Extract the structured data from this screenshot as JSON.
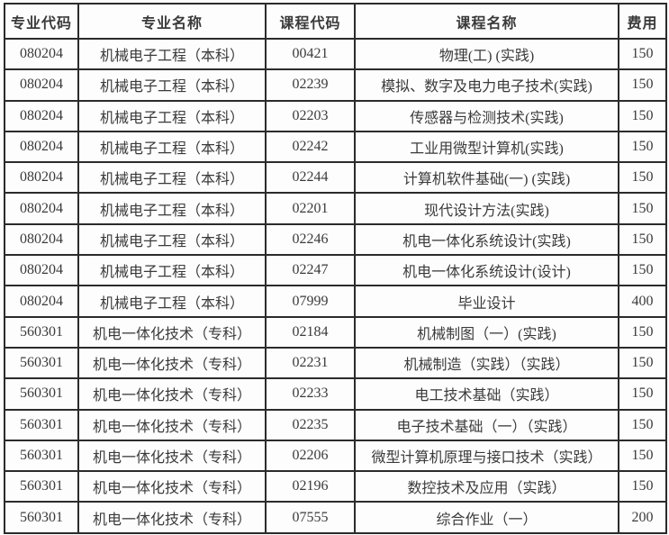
{
  "table": {
    "columns": [
      {
        "key": "major_code",
        "label": "专业代码"
      },
      {
        "key": "major_name",
        "label": "专业名称"
      },
      {
        "key": "course_code",
        "label": "课程代码"
      },
      {
        "key": "course_name",
        "label": "课程名称"
      },
      {
        "key": "fee",
        "label": "费用"
      }
    ],
    "rows": [
      [
        "080204",
        "机械电子工程（本科）",
        "00421",
        "物理(工) (实践)",
        "150"
      ],
      [
        "080204",
        "机械电子工程（本科）",
        "02239",
        "模拟、数字及电力电子技术(实践)",
        "150"
      ],
      [
        "080204",
        "机械电子工程（本科）",
        "02203",
        "传感器与检测技术(实践)",
        "150"
      ],
      [
        "080204",
        "机械电子工程（本科）",
        "02242",
        "工业用微型计算机(实践)",
        "150"
      ],
      [
        "080204",
        "机械电子工程（本科）",
        "02244",
        "计算机软件基础(一) (实践)",
        "150"
      ],
      [
        "080204",
        "机械电子工程（本科）",
        "02201",
        "现代设计方法(实践)",
        "150"
      ],
      [
        "080204",
        "机械电子工程（本科）",
        "02246",
        "机电一体化系统设计(实践)",
        "150"
      ],
      [
        "080204",
        "机械电子工程（本科）",
        "02247",
        "机电一体化系统设计(设计)",
        "150"
      ],
      [
        "080204",
        "机械电子工程（本科）",
        "07999",
        "毕业设计",
        "400"
      ],
      [
        "560301",
        "机电一体化技术（专科）",
        "02184",
        "机械制图（一）(实践)",
        "150"
      ],
      [
        "560301",
        "机电一体化技术（专科）",
        "02231",
        "机械制造（实践）（实践）",
        "150"
      ],
      [
        "560301",
        "机电一体化技术（专科）",
        "02233",
        "电工技术基础（实践）",
        "150"
      ],
      [
        "560301",
        "机电一体化技术（专科）",
        "02235",
        "电子技术基础（一）（实践）",
        "150"
      ],
      [
        "560301",
        "机电一体化技术（专科）",
        "02206",
        "微型计算机原理与接口技术（实践）",
        "150"
      ],
      [
        "560301",
        "机电一体化技术（专科）",
        "02196",
        "数控技术及应用（实践）",
        "150"
      ],
      [
        "560301",
        "机电一体化技术（专科）",
        "07555",
        "综合作业（一）",
        "200"
      ]
    ]
  },
  "colors": {
    "border": "#2b2b2b",
    "text": "#3a3a3a",
    "background": "#fdfdfd"
  },
  "chart_data": {
    "type": "table",
    "title": "",
    "columns": [
      "专业代码",
      "专业名称",
      "课程代码",
      "课程名称",
      "费用"
    ],
    "rows": [
      [
        "080204",
        "机械电子工程（本科）",
        "00421",
        "物理(工) (实践)",
        150
      ],
      [
        "080204",
        "机械电子工程（本科）",
        "02239",
        "模拟、数字及电力电子技术(实践)",
        150
      ],
      [
        "080204",
        "机械电子工程（本科）",
        "02203",
        "传感器与检测技术(实践)",
        150
      ],
      [
        "080204",
        "机械电子工程（本科）",
        "02242",
        "工业用微型计算机(实践)",
        150
      ],
      [
        "080204",
        "机械电子工程（本科）",
        "02244",
        "计算机软件基础(一) (实践)",
        150
      ],
      [
        "080204",
        "机械电子工程（本科）",
        "02201",
        "现代设计方法(实践)",
        150
      ],
      [
        "080204",
        "机械电子工程（本科）",
        "02246",
        "机电一体化系统设计(实践)",
        150
      ],
      [
        "080204",
        "机械电子工程（本科）",
        "02247",
        "机电一体化系统设计(设计)",
        150
      ],
      [
        "080204",
        "机械电子工程（本科）",
        "07999",
        "毕业设计",
        400
      ],
      [
        "560301",
        "机电一体化技术（专科）",
        "02184",
        "机械制图（一）(实践)",
        150
      ],
      [
        "560301",
        "机电一体化技术（专科）",
        "02231",
        "机械制造（实践）（实践）",
        150
      ],
      [
        "560301",
        "机电一体化技术（专科）",
        "02233",
        "电工技术基础（实践）",
        150
      ],
      [
        "560301",
        "机电一体化技术（专科）",
        "02235",
        "电子技术基础（一）（实践）",
        150
      ],
      [
        "560301",
        "机电一体化技术（专科）",
        "02206",
        "微型计算机原理与接口技术（实践）",
        150
      ],
      [
        "560301",
        "机电一体化技术（专科）",
        "02196",
        "数控技术及应用（实践）",
        150
      ],
      [
        "560301",
        "机电一体化技术（专科）",
        "07555",
        "综合作业（一）",
        200
      ]
    ]
  }
}
